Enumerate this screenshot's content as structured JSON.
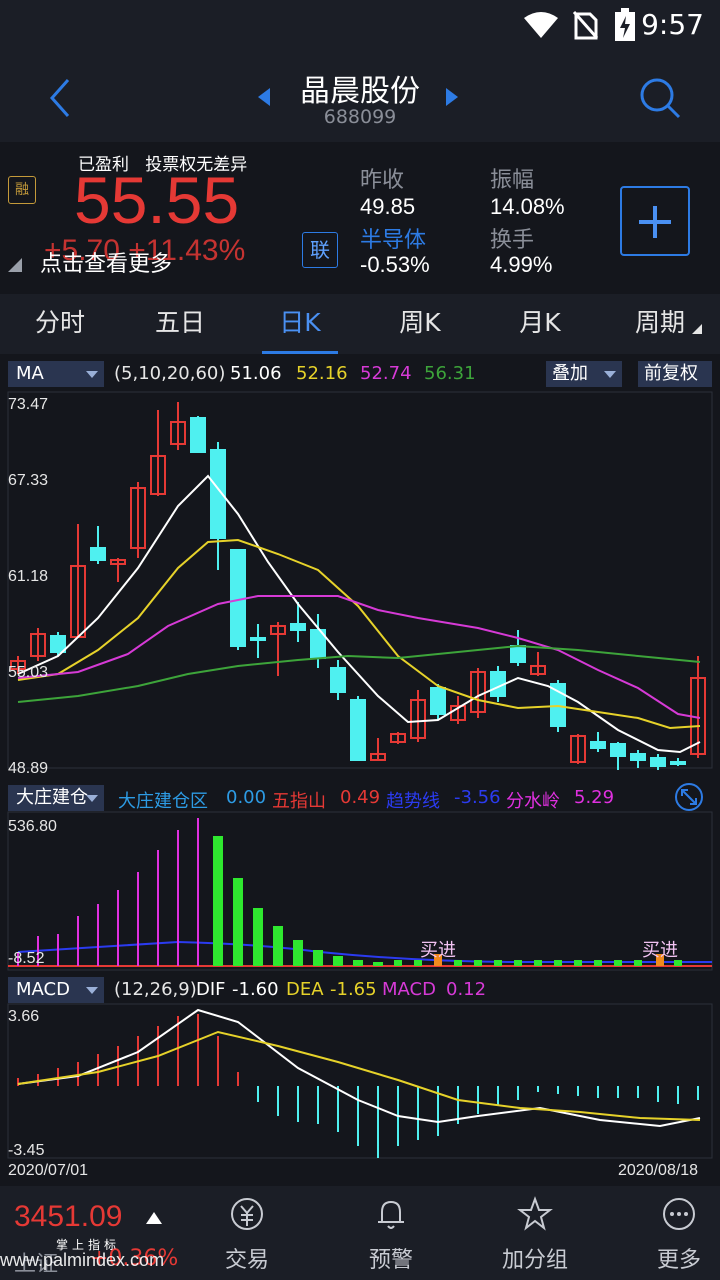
{
  "status": {
    "time": "9:57"
  },
  "header": {
    "name": "晶晨股份",
    "code": "688099"
  },
  "quote": {
    "tag_profit": "已盈利",
    "tag_vote": "投票权无差异",
    "rong_badge": "融",
    "price": "55.55",
    "change": "+5.70 +11.43%",
    "detail_link": "点击查看更多",
    "lian_badge": "联",
    "prev_close_label": "昨收",
    "prev_close": "49.85",
    "amplitude_label": "振幅",
    "amplitude": "14.08%",
    "sector_label": "半导体",
    "sector_change": "-0.53%",
    "turnover_label": "换手",
    "turnover": "4.99%"
  },
  "tabs": [
    "分时",
    "五日",
    "日K",
    "周K",
    "月K",
    "周期"
  ],
  "ma_legend": {
    "selector": "MA",
    "params": "(5,10,20,60)",
    "ma5": "51.06",
    "ma10": "52.16",
    "ma20": "52.74",
    "ma60": "56.31",
    "overlay_btn": "叠加",
    "adjust_btn": "前复权"
  },
  "price_axis": [
    "73.47",
    "67.33",
    "61.18",
    "55.03",
    "48.89"
  ],
  "indicator_legend": {
    "selector": "大庄建仓",
    "l1": "大庄建仓区",
    "v1": "0.00",
    "l2": "五指山",
    "v2": "0.49",
    "l3": "趋势线",
    "v3": "-3.56",
    "l4": "分水岭",
    "v4": "5.29"
  },
  "indicator_axis": [
    "536.80",
    "-8.52"
  ],
  "buy_signal": "买进",
  "macd_legend": {
    "selector": "MACD",
    "params": "(12,26,9)",
    "dif_label": "DIF",
    "dif": "-1.60",
    "dea_label": "DEA",
    "dea": "-1.65",
    "macd_label": "MACD",
    "macd": "0.12"
  },
  "macd_axis": [
    "3.66",
    "-3.45"
  ],
  "dates": {
    "start": "2020/07/01",
    "end": "2020/08/18"
  },
  "bottom": {
    "index_value": "3451.09",
    "index_name": "上证",
    "index_change": "+0.36%",
    "nav": [
      "交易",
      "预警",
      "加分组",
      "更多"
    ]
  },
  "watermark": {
    "site": "www.palmindex.com",
    "brand": "掌上指标"
  },
  "colors": {
    "up": "#e53935",
    "down": "#4ff0f0",
    "accent": "#2d7be4",
    "ma5": "#ffffff",
    "ma10": "#e6d22a",
    "ma20": "#d63ad6",
    "ma60": "#3da43a"
  }
}
